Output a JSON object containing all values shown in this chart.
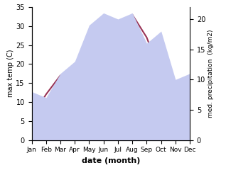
{
  "months": [
    "Jan",
    "Feb",
    "Mar",
    "Apr",
    "May",
    "Jun",
    "Jul",
    "Aug",
    "Sep",
    "Oct",
    "Nov",
    "Dec"
  ],
  "temperature": [
    6,
    12,
    17,
    18,
    22,
    26,
    27,
    33,
    27,
    17,
    9,
    6
  ],
  "precipitation": [
    8,
    7,
    11,
    13,
    19,
    21,
    20,
    21,
    16,
    18,
    10,
    11
  ],
  "temp_color": "#993355",
  "precip_fill_color": "#c5caf0",
  "xlabel": "date (month)",
  "ylabel_left": "max temp (C)",
  "ylabel_right": "med. precipitation  (kg/m2)",
  "ylim_left": [
    0,
    35
  ],
  "ylim_right": [
    0,
    22
  ],
  "yticks_left": [
    0,
    5,
    10,
    15,
    20,
    25,
    30,
    35
  ],
  "yticks_right": [
    0,
    5,
    10,
    15,
    20
  ],
  "background_color": "#ffffff"
}
